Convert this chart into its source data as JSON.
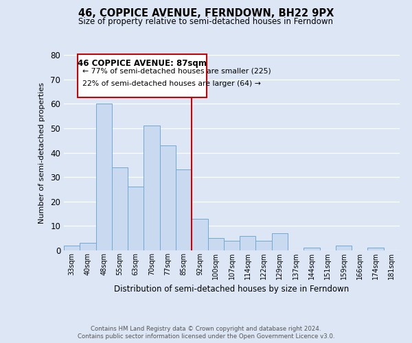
{
  "title": "46, COPPICE AVENUE, FERNDOWN, BH22 9PX",
  "subtitle": "Size of property relative to semi-detached houses in Ferndown",
  "xlabel": "Distribution of semi-detached houses by size in Ferndown",
  "ylabel": "Number of semi-detached properties",
  "bar_labels": [
    "33sqm",
    "40sqm",
    "48sqm",
    "55sqm",
    "63sqm",
    "70sqm",
    "77sqm",
    "85sqm",
    "92sqm",
    "100sqm",
    "107sqm",
    "114sqm",
    "122sqm",
    "129sqm",
    "137sqm",
    "144sqm",
    "151sqm",
    "159sqm",
    "166sqm",
    "174sqm",
    "181sqm"
  ],
  "bar_values": [
    2,
    3,
    60,
    34,
    26,
    51,
    43,
    33,
    13,
    5,
    4,
    6,
    4,
    7,
    0,
    1,
    0,
    2,
    0,
    1,
    0
  ],
  "bar_color": "#c9d9f0",
  "bar_edge_color": "#6fa8d6",
  "property_line_x": 7.5,
  "property_label": "46 COPPICE AVENUE: 87sqm",
  "pct_smaller_text": "← 77% of semi-detached houses are smaller (225)",
  "pct_larger_text": "22% of semi-detached houses are larger (64) →",
  "annotation_box_edge": "#cc0000",
  "vline_color": "#cc0000",
  "ylim": [
    0,
    80
  ],
  "yticks": [
    0,
    10,
    20,
    30,
    40,
    50,
    60,
    70,
    80
  ],
  "bg_color": "#dce6f5",
  "plot_bg_color": "#dce6f5",
  "footer1": "Contains HM Land Registry data © Crown copyright and database right 2024.",
  "footer2": "Contains public sector information licensed under the Open Government Licence v3.0."
}
